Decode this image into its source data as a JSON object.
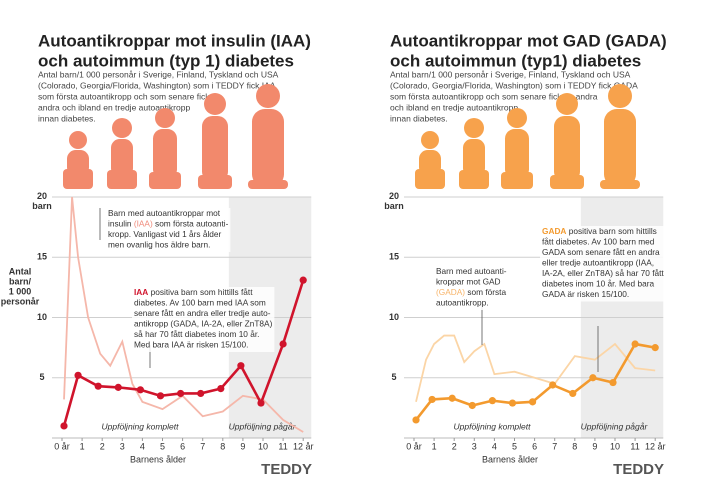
{
  "chart_data": [
    {
      "type": "line",
      "title": [
        "Autoantikroppar mot insulin (IAA)",
        "och autoimmun (typ 1) diabetes"
      ],
      "subtitle": [
        "Antal barn/1 000 personår i Sverige, Finland, Tyskland och USA",
        "(Colorado, Georgia/Florida, Washington) som i TEDDY fick IAA",
        "som första autoantikropp och som senare fick en",
        "andra och ibland en tredje autoantikropp",
        "innan diabetes."
      ],
      "figure_color": "#f2896c",
      "y_label": [
        "Antal",
        "barn/",
        "1 000",
        "personår"
      ],
      "x_label": "Barnens ålder",
      "xlim": [
        0,
        12.4
      ],
      "xticks": [
        {
          "value": 0,
          "label": "0 år"
        },
        1,
        2,
        3,
        4,
        5,
        6,
        7,
        8,
        9,
        10,
        11,
        {
          "value": 12,
          "label": "12 år"
        }
      ],
      "ylim": [
        0,
        20
      ],
      "yticks": [
        5,
        10,
        15,
        {
          "value": 20,
          "label": "20 barn"
        }
      ],
      "grid": true,
      "shaded_xlim": [
        8.3,
        12.4
      ],
      "region_labels": [
        "Uppföljning komplett",
        "Uppföljning pågår"
      ],
      "series": [
        {
          "color": "#f5b7aa",
          "x": [
            0.1,
            0.5,
            0.8,
            1.3,
            1.9,
            2.4,
            3,
            3.5,
            4,
            5,
            6,
            7,
            8,
            9,
            10,
            11,
            12
          ],
          "values": [
            3.2,
            20,
            15,
            10,
            7,
            6,
            8,
            4.5,
            3,
            2.4,
            3.5,
            1.8,
            2.2,
            3.5,
            3.2,
            1.5,
            0.5
          ],
          "markers": false
        },
        {
          "color": "#d0142c",
          "x": [
            0.1,
            0.8,
            1.8,
            2.8,
            3.9,
            4.9,
            5.9,
            6.9,
            7.9,
            8.9,
            9.9,
            11,
            12
          ],
          "values": [
            1,
            5.2,
            4.3,
            4.2,
            4,
            3.5,
            3.7,
            3.7,
            4.1,
            6,
            2.9,
            7.8,
            13.1
          ],
          "markers": true
        }
      ],
      "annotations": [
        {
          "lines": [
            [
              "Barn med autoantikroppar mot"
            ],
            [
              "insulin ",
              {
                "text": "(IAA)",
                "color": "#f08a7a"
              },
              " som första autoanti-"
            ],
            [
              "kropp. Vanligast vid 1 års ålder"
            ],
            [
              "men ovanlig hos äldre barn."
            ]
          ]
        },
        {
          "lines": [
            [
              {
                "text": "IAA",
                "color": "#d0142c",
                "bold": true
              },
              " positiva barn som hittills fått"
            ],
            [
              "diabetes. Av 100 barn med IAA som"
            ],
            [
              "senare fått en andra eller tredje auto-"
            ],
            [
              "antikropp (GADA, IA-2A, eller ZnT8A)"
            ],
            [
              "så har 70 fått diabetes inom 10 år."
            ],
            [
              "Med bara IAA är risken 15/100."
            ]
          ]
        }
      ],
      "logo": "TEDDY"
    },
    {
      "type": "line",
      "title": [
        "Autoantikroppar mot GAD (GADA)",
        "och autoimmun (typ1) diabetes"
      ],
      "subtitle": [
        "Antal barn/1 000 personår i Sverige, Finland, Tyskland och USA",
        "(Colorado, Georgia/Florida, Washington) som i TEDDY fick GADA",
        "som första autoantikropp och som senare fick en andra",
        "och ibland en tredje autoantikropp",
        "innan diabetes."
      ],
      "figure_color": "#f7a24c",
      "x_label": "Barnens ålder",
      "xlim": [
        0,
        12.4
      ],
      "xticks": [
        {
          "value": 0,
          "label": "0 år"
        },
        1,
        2,
        3,
        4,
        5,
        6,
        7,
        8,
        9,
        10,
        11,
        {
          "value": 12,
          "label": "12 år"
        }
      ],
      "ylim": [
        0,
        20
      ],
      "yticks": [
        5,
        10,
        15,
        {
          "value": 20,
          "label": "20 barn"
        }
      ],
      "grid": true,
      "shaded_xlim": [
        8.3,
        12.4
      ],
      "region_labels": [
        "Uppföljning komplett",
        "Uppföljning pågår"
      ],
      "series": [
        {
          "color": "#fbd5a6",
          "x": [
            0.1,
            0.6,
            1,
            1.5,
            2,
            2.5,
            3,
            3.5,
            4,
            5,
            6,
            7,
            8,
            9,
            10,
            11,
            12
          ],
          "values": [
            3,
            6.5,
            7.8,
            8.5,
            8.5,
            6.3,
            7.2,
            7.8,
            5.3,
            5.5,
            5,
            4.5,
            6.8,
            6.5,
            7.8,
            5.8,
            5.6
          ],
          "markers": false
        },
        {
          "color": "#f39a2e",
          "x": [
            0.1,
            0.9,
            1.9,
            2.9,
            3.9,
            4.9,
            5.9,
            6.9,
            7.9,
            8.9,
            9.9,
            11,
            12
          ],
          "values": [
            1.5,
            3.2,
            3.3,
            2.7,
            3.1,
            2.9,
            3,
            4.4,
            3.7,
            5,
            4.6,
            7.8,
            7.5
          ],
          "markers": true
        }
      ],
      "annotations": [
        {
          "lines": [
            [
              "Barn med autoanti-"
            ],
            [
              "kroppar mot GAD"
            ],
            [
              {
                "text": "(GADA)",
                "color": "#f7b46a"
              },
              " som första"
            ],
            [
              "autoantikropp."
            ]
          ]
        },
        {
          "lines": [
            [
              {
                "text": "GADA",
                "color": "#f39a2e",
                "bold": true
              },
              " positiva barn som hittills"
            ],
            [
              "fått diabetes.  Av 100 barn med"
            ],
            [
              "GADA som senare fått en andra"
            ],
            [
              "eller tredje autoantikropp (IAA,"
            ],
            [
              "IA-2A, eller ZnT8A) så har 70 fått"
            ],
            [
              "diabetes inom 10 år. Med bara"
            ],
            [
              "GADA är risken 15/100."
            ]
          ]
        }
      ],
      "logo": "TEDDY"
    }
  ]
}
